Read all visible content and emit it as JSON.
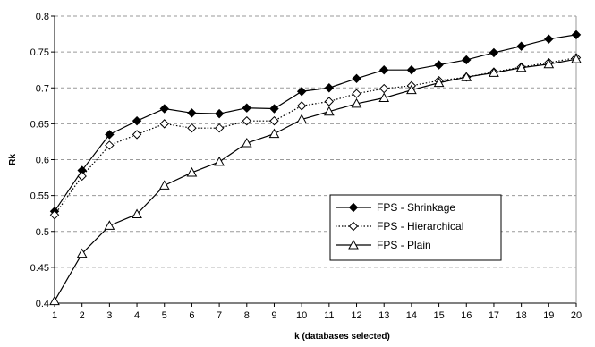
{
  "chart_data": {
    "type": "line",
    "title": "",
    "xlabel": "k (databases selected)",
    "ylabel": "Rk",
    "xlim": [
      1,
      20
    ],
    "ylim": [
      0.4,
      0.8
    ],
    "y_ticks": [
      0.4,
      0.45,
      0.5,
      0.55,
      0.6,
      0.65,
      0.7,
      0.75,
      0.8
    ],
    "y_tick_labels": [
      "0.4",
      "0.45",
      "0.5",
      "0.55",
      "0.6",
      "0.65",
      "0.7",
      "0.75",
      "0.8"
    ],
    "x": [
      1,
      2,
      3,
      4,
      5,
      6,
      7,
      8,
      9,
      10,
      11,
      12,
      13,
      14,
      15,
      16,
      17,
      18,
      19,
      20
    ],
    "grid": "horizontal dashed",
    "legend_position": "center-right",
    "series": [
      {
        "name": "FPS - Shrinkage",
        "marker": "filled-diamond",
        "line_style": "solid",
        "values": [
          0.528,
          0.585,
          0.635,
          0.654,
          0.671,
          0.665,
          0.664,
          0.672,
          0.671,
          0.695,
          0.7,
          0.713,
          0.725,
          0.725,
          0.732,
          0.739,
          0.749,
          0.758,
          0.768,
          0.774
        ]
      },
      {
        "name": "FPS - Hierarchical",
        "marker": "open-diamond",
        "line_style": "dotted",
        "values": [
          0.523,
          0.577,
          0.62,
          0.635,
          0.65,
          0.644,
          0.644,
          0.654,
          0.654,
          0.675,
          0.681,
          0.692,
          0.699,
          0.703,
          0.71,
          0.715,
          0.722,
          0.729,
          0.735,
          0.742
        ]
      },
      {
        "name": "FPS - Plain",
        "marker": "open-triangle",
        "line_style": "solid",
        "values": [
          0.403,
          0.469,
          0.508,
          0.524,
          0.564,
          0.582,
          0.597,
          0.623,
          0.636,
          0.656,
          0.667,
          0.678,
          0.686,
          0.697,
          0.707,
          0.715,
          0.721,
          0.728,
          0.733,
          0.74
        ]
      }
    ]
  }
}
